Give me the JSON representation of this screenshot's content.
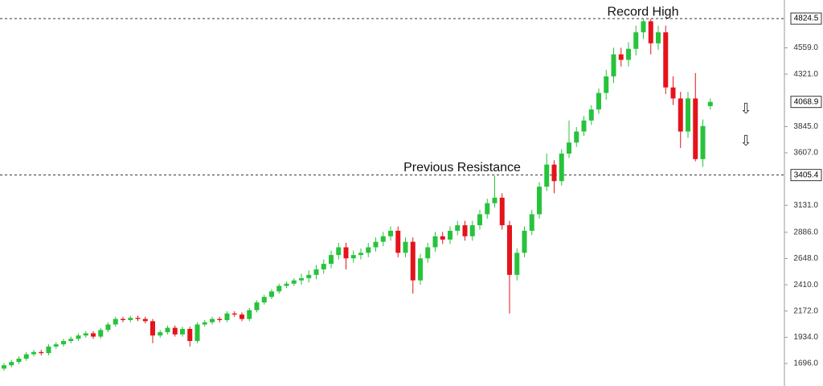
{
  "chart_data": {
    "type": "candlestick",
    "open": [
      1650,
      1680,
      1710,
      1740,
      1780,
      1800,
      1790,
      1850,
      1870,
      1900,
      1920,
      1950,
      1970,
      1940,
      2000,
      2050,
      2100,
      2090,
      2110,
      2100,
      2080,
      1950,
      1980,
      2020,
      1960,
      2010,
      1900,
      2050,
      2070,
      2100,
      2090,
      2150,
      2140,
      2100,
      2180,
      2250,
      2300,
      2350,
      2400,
      2420,
      2450,
      2470,
      2500,
      2550,
      2600,
      2680,
      2750,
      2650,
      2680,
      2700,
      2750,
      2800,
      2850,
      2900,
      2700,
      2800,
      2450,
      2650,
      2750,
      2850,
      2820,
      2900,
      2950,
      2850,
      2950,
      3050,
      3150,
      3200,
      2950,
      2500,
      2700,
      2900,
      3050,
      3300,
      3500,
      3350,
      3600,
      3700,
      3800,
      3900,
      4000,
      4150,
      4300,
      4500,
      4450,
      4550,
      4700,
      4800,
      4600,
      4700,
      4200,
      4100,
      3800,
      4100,
      3550,
      4030
    ],
    "high": [
      1700,
      1730,
      1760,
      1800,
      1820,
      1820,
      1870,
      1890,
      1920,
      1940,
      1970,
      1990,
      1990,
      2020,
      2070,
      2120,
      2120,
      2130,
      2130,
      2120,
      2100,
      2000,
      2040,
      2040,
      2030,
      2030,
      2070,
      2090,
      2120,
      2120,
      2170,
      2170,
      2160,
      2200,
      2270,
      2320,
      2370,
      2420,
      2440,
      2470,
      2510,
      2540,
      2590,
      2640,
      2720,
      2790,
      2790,
      2720,
      2740,
      2790,
      2840,
      2890,
      2940,
      2940,
      2840,
      2840,
      2690,
      2790,
      2890,
      2890,
      2940,
      2990,
      2990,
      2990,
      3090,
      3190,
      3400,
      3240,
      2990,
      2740,
      2940,
      3090,
      3340,
      3600,
      3540,
      3640,
      3900,
      3840,
      3940,
      4040,
      4190,
      4360,
      4560,
      4560,
      4610,
      4760,
      4824.5,
      4820,
      4760,
      4760,
      4300,
      4160,
      4160,
      4330,
      3910,
      4100
    ],
    "low": [
      1630,
      1660,
      1690,
      1720,
      1760,
      1770,
      1770,
      1830,
      1850,
      1880,
      1900,
      1930,
      1920,
      1920,
      1980,
      2030,
      2070,
      2070,
      2080,
      2060,
      1880,
      1930,
      1960,
      1940,
      1940,
      1850,
      1880,
      2030,
      2050,
      2070,
      2070,
      2120,
      2080,
      2080,
      2160,
      2230,
      2280,
      2330,
      2380,
      2400,
      2410,
      2430,
      2460,
      2510,
      2560,
      2640,
      2550,
      2610,
      2640,
      2660,
      2710,
      2760,
      2810,
      2660,
      2660,
      2330,
      2410,
      2610,
      2710,
      2780,
      2780,
      2860,
      2810,
      2810,
      2910,
      3010,
      3110,
      2910,
      2150,
      2450,
      2660,
      2860,
      3010,
      3260,
      3240,
      3310,
      3560,
      3660,
      3760,
      3860,
      3960,
      4090,
      4240,
      4390,
      4390,
      4490,
      4640,
      4500,
      4540,
      4140,
      4040,
      3650,
      3740,
      3530,
      3480,
      4000
    ],
    "close": [
      1680,
      1710,
      1740,
      1780,
      1800,
      1790,
      1850,
      1870,
      1900,
      1920,
      1950,
      1970,
      1940,
      2000,
      2050,
      2100,
      2090,
      2110,
      2100,
      2080,
      1950,
      1980,
      2020,
      1960,
      2010,
      1900,
      2050,
      2070,
      2100,
      2090,
      2150,
      2140,
      2100,
      2180,
      2250,
      2300,
      2350,
      2400,
      2420,
      2450,
      2470,
      2500,
      2550,
      2600,
      2680,
      2750,
      2650,
      2680,
      2700,
      2750,
      2800,
      2850,
      2900,
      2700,
      2800,
      2450,
      2650,
      2750,
      2850,
      2820,
      2900,
      2950,
      2850,
      2950,
      3050,
      3150,
      3200,
      2950,
      2500,
      2700,
      2900,
      3050,
      3300,
      3500,
      3350,
      3600,
      3700,
      3800,
      3900,
      4000,
      4150,
      4300,
      4500,
      4450,
      4550,
      4700,
      4800,
      4600,
      4700,
      4200,
      4100,
      3800,
      4100,
      3550,
      3850,
      4068.9
    ],
    "up_color": "#27c33c",
    "down_color": "#e5131b",
    "ylim": [
      1492,
      4993
    ],
    "yticks": [
      {
        "value": 4559,
        "label": "4559.0"
      },
      {
        "value": 4321,
        "label": "4321.0"
      },
      {
        "value": 3845,
        "label": "3845.0"
      },
      {
        "value": 3607,
        "label": "3607.0"
      },
      {
        "value": 3131,
        "label": "3131.0"
      },
      {
        "value": 2886,
        "label": "2886.0"
      },
      {
        "value": 2648,
        "label": "2648.0"
      },
      {
        "value": 2410,
        "label": "2410.0"
      },
      {
        "value": 2172,
        "label": "2172.0"
      },
      {
        "value": 1934,
        "label": "1934.0"
      },
      {
        "value": 1696,
        "label": "1696.0"
      }
    ],
    "annotations": [
      {
        "text": "Record High",
        "value": 4824.5
      },
      {
        "text": "Previous Resistance",
        "value": 3405.4
      }
    ]
  }
}
